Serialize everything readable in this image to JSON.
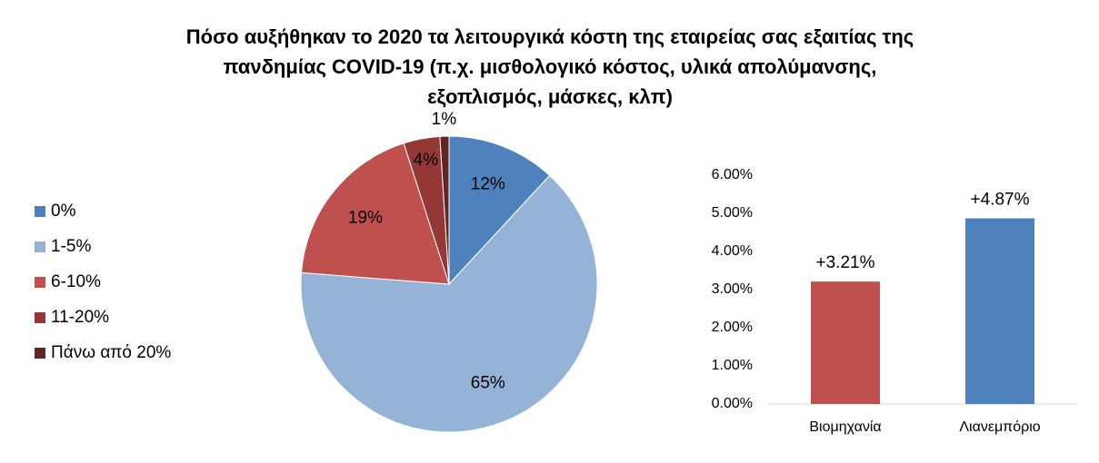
{
  "chart_data": [
    {
      "type": "pie",
      "title": [
        "Πόσο αυξήθηκαν το 2020 τα λειτουργικά κόστη της εταιρείας σας εξαιτίας της",
        "πανδημίας COVID-19 (π.χ. μισθολογικό κόστος, υλικά απολύμανσης,",
        "εξοπλισμός, μάσκες, κλπ)"
      ],
      "categories": [
        "0%",
        "1-5%",
        "6-10%",
        "11-20%",
        "Πάνω από 20%"
      ],
      "values": [
        12,
        65,
        19,
        4,
        1
      ],
      "value_labels": [
        "12%",
        "65%",
        "19%",
        "4%",
        "1%"
      ],
      "colors": [
        "#4f81bd",
        "#95b3d7",
        "#c0504d",
        "#953735",
        "#632523"
      ],
      "legend": "left"
    },
    {
      "type": "bar",
      "categories": [
        "Βιομηχανία",
        "Λιανεμπόριο"
      ],
      "values": [
        3.21,
        4.87
      ],
      "value_labels": [
        "+3.21%",
        "+4.87%"
      ],
      "colors": [
        "#c0504d",
        "#4f81bd"
      ],
      "ylim": [
        0,
        6
      ],
      "yticks": [
        {
          "value": 0,
          "label": "0.00%"
        },
        {
          "value": 1,
          "label": "1.00%"
        },
        {
          "value": 2,
          "label": "2.00%"
        },
        {
          "value": 3,
          "label": "3.00%"
        },
        {
          "value": 4,
          "label": "4.00%"
        },
        {
          "value": 5,
          "label": "5.00%"
        },
        {
          "value": 6,
          "label": "6.00%"
        }
      ],
      "grid": false
    }
  ]
}
